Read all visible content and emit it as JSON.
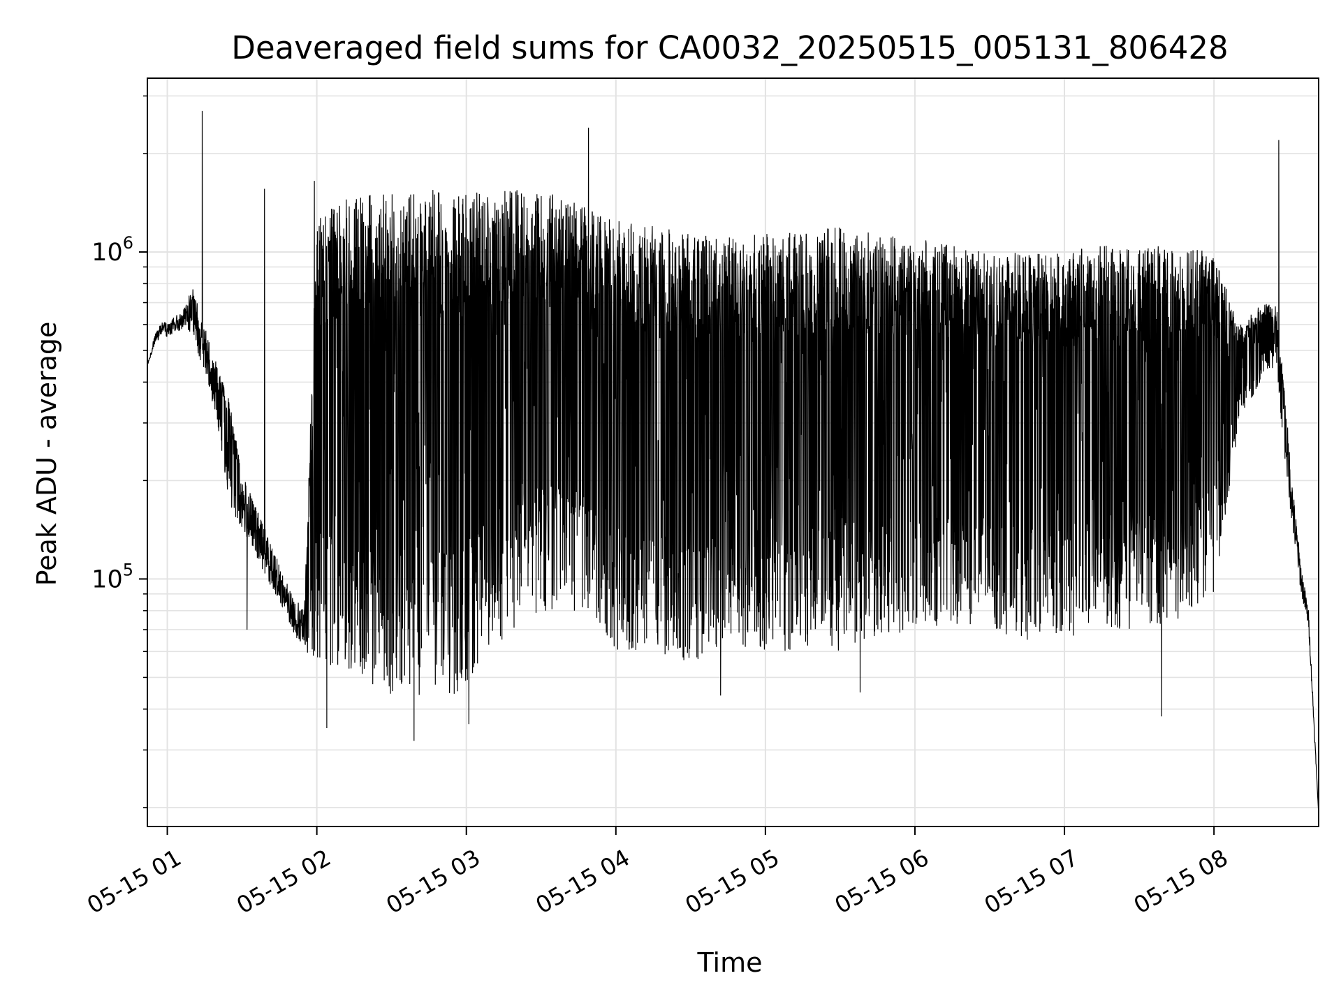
{
  "chart_data": {
    "type": "line",
    "title": "Deaveraged field sums for CA0032_20250515_005131_806428",
    "xlabel": "Time",
    "ylabel": "Peak ADU - average",
    "y_scale": "log",
    "x_range": [
      "05-15 00:52",
      "05-15 08:42"
    ],
    "ylim": [
      17500,
      3400000
    ],
    "x_ticks": [
      "05-15 01",
      "05-15 02",
      "05-15 03",
      "05-15 04",
      "05-15 05",
      "05-15 06",
      "05-15 07",
      "05-15 08"
    ],
    "x_tick_rotation": 30,
    "y_major_ticks": [
      {
        "value": 100000,
        "base": "10",
        "exp": "5"
      },
      {
        "value": 1000000,
        "base": "10",
        "exp": "6"
      }
    ],
    "grid": true,
    "grid_minor": true,
    "line_color": "#000000",
    "legend": "none",
    "series": [
      {
        "x": [
          "05-15 00:52",
          "05-15 00:55",
          "05-15 00:58",
          "05-15 01:00",
          "05-15 01:03",
          "05-15 01:06",
          "05-15 01:10",
          "05-15 01:15",
          "05-15 01:20",
          "05-15 01:25",
          "05-15 01:30",
          "05-15 01:35",
          "05-15 01:40",
          "05-15 01:45",
          "05-15 01:50",
          "05-15 01:55",
          "05-15 02:00",
          "05-15 02:10",
          "05-15 02:20",
          "05-15 02:30",
          "05-15 02:40",
          "05-15 02:50",
          "05-15 03:00",
          "05-15 03:10",
          "05-15 03:20",
          "05-15 03:30",
          "05-15 03:40",
          "05-15 03:50",
          "05-15 04:00",
          "05-15 04:15",
          "05-15 04:30",
          "05-15 04:45",
          "05-15 05:00",
          "05-15 05:15",
          "05-15 05:30",
          "05-15 05:45",
          "05-15 06:00",
          "05-15 06:15",
          "05-15 06:30",
          "05-15 06:45",
          "05-15 07:00",
          "05-15 07:15",
          "05-15 07:30",
          "05-15 07:45",
          "05-15 08:00",
          "05-15 08:10",
          "05-15 08:20",
          "05-15 08:25",
          "05-15 08:28",
          "05-15 08:32",
          "05-15 08:35",
          "05-15 08:38",
          "05-15 08:42"
        ],
        "upper": [
          450000,
          560000,
          630000,
          600000,
          640000,
          650000,
          780000,
          600000,
          450000,
          350000,
          210000,
          170000,
          140000,
          110000,
          90000,
          80000,
          1300000,
          1450000,
          1500000,
          1500000,
          1550000,
          1550000,
          1500000,
          1550000,
          1550000,
          1500000,
          1500000,
          1400000,
          1250000,
          1200000,
          1150000,
          1150000,
          1150000,
          1150000,
          1200000,
          1150000,
          1100000,
          1050000,
          1000000,
          1000000,
          1000000,
          1050000,
          1050000,
          1050000,
          1000000,
          600000,
          700000,
          700000,
          400000,
          180000,
          110000,
          80000,
          19000
        ],
        "lower": [
          450000,
          520000,
          560000,
          550000,
          560000,
          580000,
          560000,
          420000,
          300000,
          170000,
          140000,
          120000,
          100000,
          85000,
          70000,
          60000,
          55000,
          50000,
          48000,
          44000,
          42000,
          42000,
          46000,
          60000,
          70000,
          80000,
          80000,
          80000,
          60000,
          60000,
          55000,
          60000,
          60000,
          60000,
          60000,
          65000,
          70000,
          70000,
          70000,
          65000,
          65000,
          70000,
          70000,
          75000,
          90000,
          300000,
          420000,
          450000,
          250000,
          130000,
          90000,
          70000,
          19000
        ],
        "spikes": [
          {
            "x": "05-15 01:14",
            "y": 2700000
          },
          {
            "x": "05-15 01:39",
            "y": 1560000
          },
          {
            "x": "05-15 01:59",
            "y": 1650000
          },
          {
            "x": "05-15 03:49",
            "y": 2400000
          },
          {
            "x": "05-15 08:26",
            "y": 2200000
          }
        ],
        "dips": [
          {
            "x": "05-15 01:32",
            "y": 70000
          },
          {
            "x": "05-15 02:04",
            "y": 35000
          },
          {
            "x": "05-15 02:39",
            "y": 32000
          },
          {
            "x": "05-15 03:01",
            "y": 36000
          },
          {
            "x": "05-15 04:42",
            "y": 44000
          },
          {
            "x": "05-15 05:38",
            "y": 45000
          },
          {
            "x": "05-15 07:39",
            "y": 38000
          },
          {
            "x": "05-15 08:42",
            "y": 19000
          }
        ]
      }
    ]
  }
}
